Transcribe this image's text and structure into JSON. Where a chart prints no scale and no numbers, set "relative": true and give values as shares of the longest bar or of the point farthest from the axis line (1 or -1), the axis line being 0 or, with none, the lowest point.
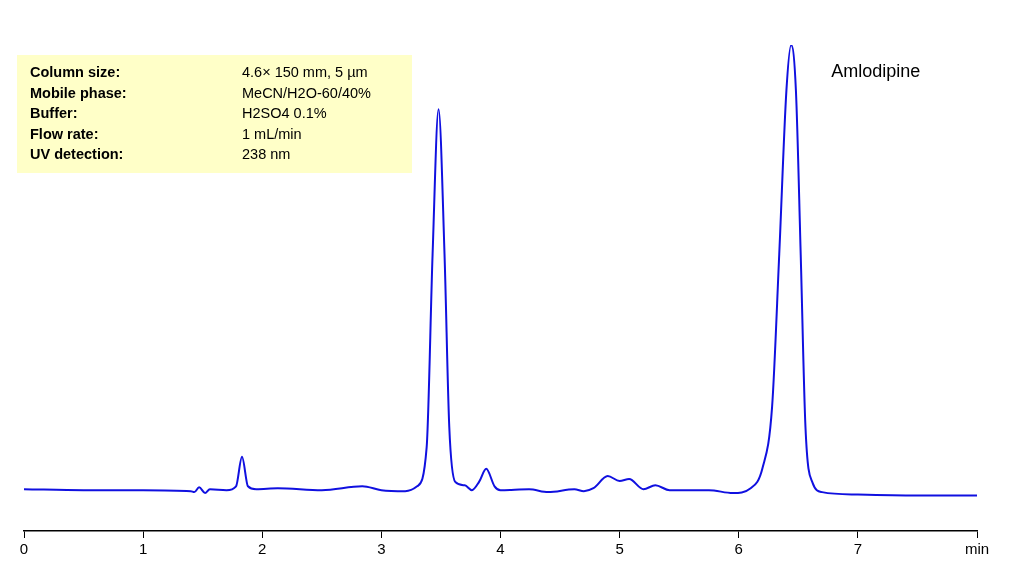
{
  "chart_data": {
    "type": "line",
    "relative": true,
    "color": "#1010e0",
    "legend": false,
    "grid": false,
    "marker": "none",
    "line_style": "solid",
    "x": [
      0,
      0.5,
      1.0,
      1.4,
      1.43,
      1.47,
      1.52,
      1.56,
      1.7,
      1.78,
      1.83,
      1.88,
      1.95,
      2.13,
      2.5,
      2.84,
      3.0,
      3.2,
      3.3,
      3.38,
      3.43,
      3.48,
      3.53,
      3.57,
      3.62,
      3.7,
      3.76,
      3.82,
      3.88,
      3.95,
      4.0,
      4.24,
      4.4,
      4.62,
      4.7,
      4.78,
      4.9,
      5.0,
      5.08,
      5.2,
      5.3,
      5.42,
      5.75,
      5.95,
      6.1,
      6.2,
      6.28,
      6.34,
      6.4,
      6.44,
      6.48,
      6.52,
      6.56,
      6.62,
      6.7,
      7.0,
      7.5,
      8.0
    ],
    "values": [
      0.086,
      0.084,
      0.084,
      0.082,
      0.08,
      0.09,
      0.078,
      0.086,
      0.084,
      0.092,
      0.153,
      0.092,
      0.086,
      0.088,
      0.084,
      0.092,
      0.084,
      0.082,
      0.092,
      0.172,
      0.57,
      0.868,
      0.57,
      0.214,
      0.101,
      0.094,
      0.084,
      0.101,
      0.128,
      0.092,
      0.084,
      0.086,
      0.08,
      0.086,
      0.082,
      0.088,
      0.113,
      0.103,
      0.107,
      0.086,
      0.094,
      0.084,
      0.084,
      0.078,
      0.088,
      0.13,
      0.256,
      0.57,
      0.906,
      1.0,
      0.906,
      0.57,
      0.214,
      0.099,
      0.08,
      0.075,
      0.073,
      0.073
    ],
    "xlim": [
      0,
      8
    ],
    "xticks": [
      0,
      1,
      2,
      3,
      4,
      5,
      6,
      7,
      {
        "value": 8,
        "label": "min"
      }
    ],
    "tick_labels": "x",
    "annotations": [
      {
        "text": "Amlodipine",
        "x": 6.44,
        "y": 1.0
      },
      "Column size: 4.6× 150 mm, 5 µm",
      "Mobile phase: MeCN/H2O-60/40%",
      "Buffer: H2SO4 0.1%",
      "Flow rate: 1 mL/min",
      "UV detection: 238 nm"
    ]
  }
}
